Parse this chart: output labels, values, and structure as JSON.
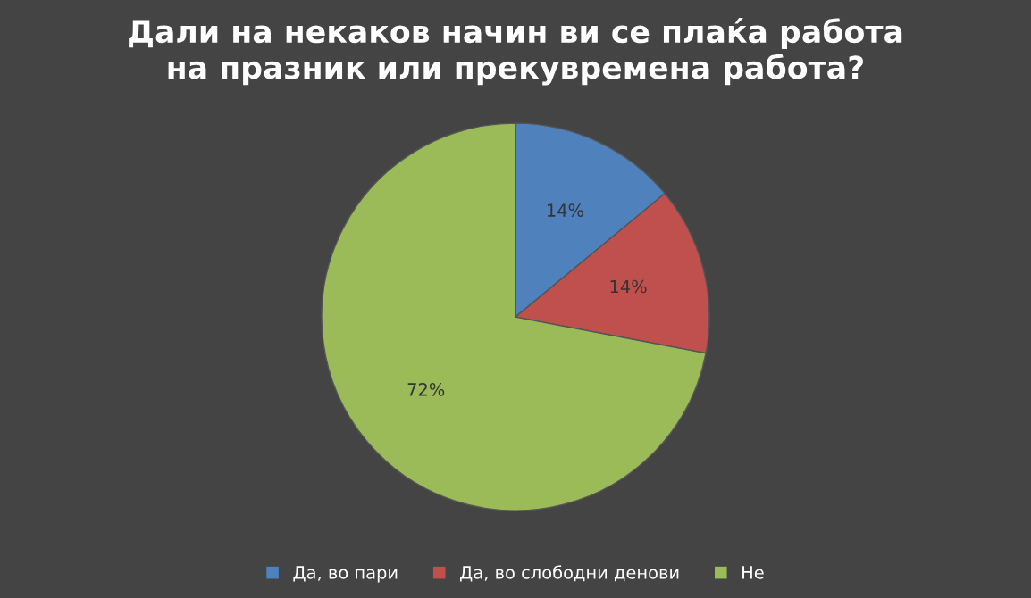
{
  "chart_data": {
    "type": "pie",
    "title": "Дали на некаков начин ви се плаќа работа\nна празник или прекувремена работа?",
    "categories": [
      "Да, во пари",
      "Да, во слободни денови",
      "Не"
    ],
    "values": [
      14,
      14,
      72
    ],
    "value_labels": [
      "14%",
      "14%",
      "72%"
    ],
    "colors": [
      "#4f81bd",
      "#c0504d",
      "#9bbb59"
    ],
    "legend": "bottom"
  }
}
